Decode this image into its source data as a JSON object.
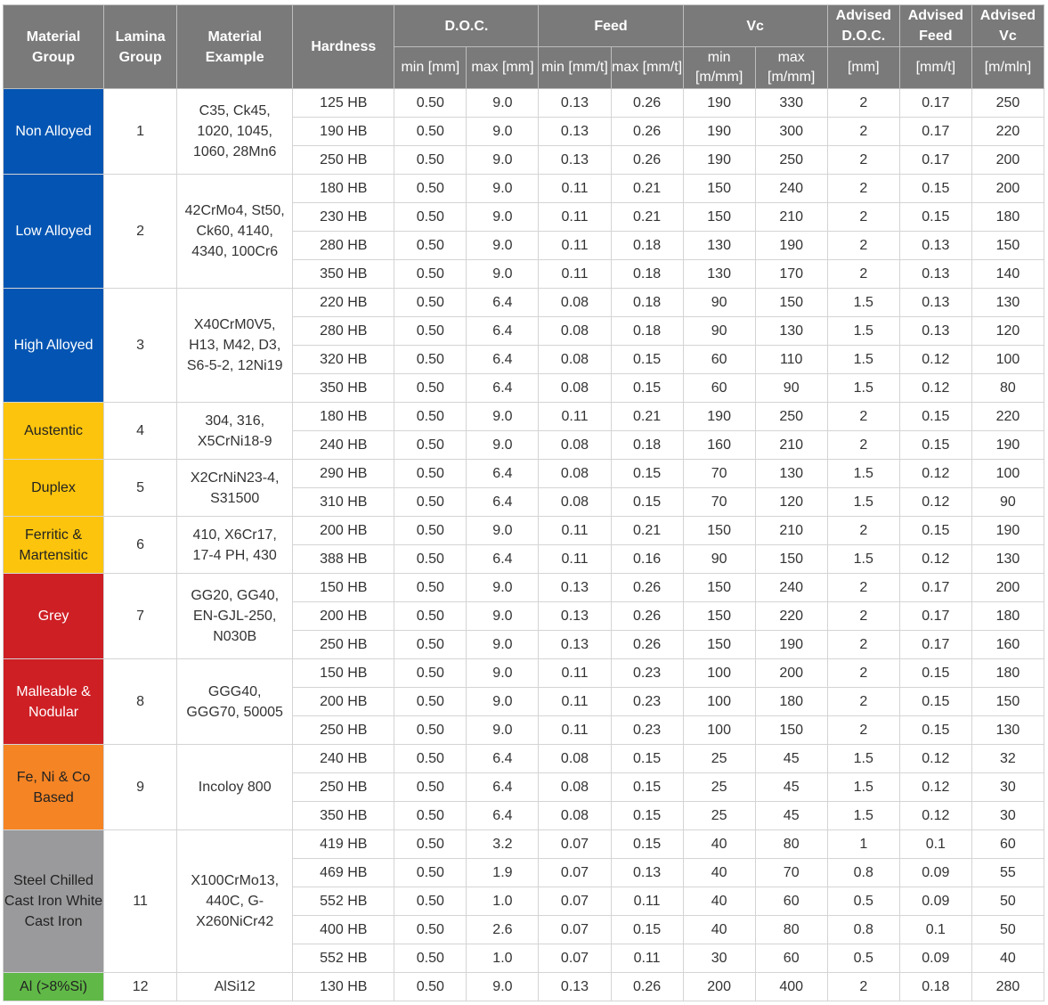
{
  "headers": {
    "material_group": "Material Group",
    "lamina_group": "Lamina Group",
    "material_example": "Material Example",
    "hardness": "Hardness",
    "doc": "D.O.C.",
    "feed": "Feed",
    "vc": "Vc",
    "advised_doc": "Advised D.O.C.",
    "advised_feed": "Advised Feed",
    "advised_vc": "Advised Vc",
    "doc_min": "min [mm]",
    "doc_max": "max [mm]",
    "feed_min": "min [mm/t]",
    "feed_max": "max [mm/t]",
    "vc_min": "min [m/mm]",
    "vc_max": "max [m/mm]",
    "advised_doc_unit": "[mm]",
    "advised_feed_unit": "[mm/t]",
    "advised_vc_unit": "[m/mln]"
  },
  "colors": {
    "header_bg": "#7a7a7a",
    "blue": "#0455b3",
    "yellow": "#fcc40d",
    "red": "#ce1f25",
    "orange": "#f58424",
    "grey": "#9a9a9c",
    "green": "#60b947"
  },
  "groups": [
    {
      "name": "Non Alloyed",
      "color": "#0455b3",
      "text_color": "#ffffff",
      "lamina": "1",
      "example": "C35, Ck45, 1020, 1045, 1060, 28Mn6",
      "rows": [
        [
          "125 HB",
          "0.50",
          "9.0",
          "0.13",
          "0.26",
          "190",
          "330",
          "2",
          "0.17",
          "250"
        ],
        [
          "190 HB",
          "0.50",
          "9.0",
          "0.13",
          "0.26",
          "190",
          "300",
          "2",
          "0.17",
          "220"
        ],
        [
          "250 HB",
          "0.50",
          "9.0",
          "0.13",
          "0.26",
          "190",
          "250",
          "2",
          "0.17",
          "200"
        ]
      ]
    },
    {
      "name": "Low Alloyed",
      "color": "#0455b3",
      "text_color": "#ffffff",
      "lamina": "2",
      "example": "42CrMo4, St50, Ck60, 4140, 4340, 100Cr6",
      "rows": [
        [
          "180 HB",
          "0.50",
          "9.0",
          "0.11",
          "0.21",
          "150",
          "240",
          "2",
          "0.15",
          "200"
        ],
        [
          "230 HB",
          "0.50",
          "9.0",
          "0.11",
          "0.21",
          "150",
          "210",
          "2",
          "0.15",
          "180"
        ],
        [
          "280 HB",
          "0.50",
          "9.0",
          "0.11",
          "0.18",
          "130",
          "190",
          "2",
          "0.13",
          "150"
        ],
        [
          "350 HB",
          "0.50",
          "9.0",
          "0.11",
          "0.18",
          "130",
          "170",
          "2",
          "0.13",
          "140"
        ]
      ]
    },
    {
      "name": "High Alloyed",
      "color": "#0455b3",
      "text_color": "#ffffff",
      "lamina": "3",
      "example": "X40CrM0V5, H13, M42, D3, S6-5-2, 12Ni19",
      "rows": [
        [
          "220 HB",
          "0.50",
          "6.4",
          "0.08",
          "0.18",
          "90",
          "150",
          "1.5",
          "0.13",
          "130"
        ],
        [
          "280 HB",
          "0.50",
          "6.4",
          "0.08",
          "0.18",
          "90",
          "130",
          "1.5",
          "0.13",
          "120"
        ],
        [
          "320 HB",
          "0.50",
          "6.4",
          "0.08",
          "0.15",
          "60",
          "110",
          "1.5",
          "0.12",
          "100"
        ],
        [
          "350 HB",
          "0.50",
          "6.4",
          "0.08",
          "0.15",
          "60",
          "90",
          "1.5",
          "0.12",
          "80"
        ]
      ]
    },
    {
      "name": "Austentic",
      "color": "#fcc40d",
      "text_color": "#222222",
      "lamina": "4",
      "example": "304, 316, X5CrNi18-9",
      "rows": [
        [
          "180 HB",
          "0.50",
          "9.0",
          "0.11",
          "0.21",
          "190",
          "250",
          "2",
          "0.15",
          "220"
        ],
        [
          "240 HB",
          "0.50",
          "9.0",
          "0.08",
          "0.18",
          "160",
          "210",
          "2",
          "0.15",
          "190"
        ]
      ]
    },
    {
      "name": "Duplex",
      "color": "#fcc40d",
      "text_color": "#222222",
      "lamina": "5",
      "example": "X2CrNiN23-4, S31500",
      "rows": [
        [
          "290 HB",
          "0.50",
          "6.4",
          "0.08",
          "0.15",
          "70",
          "130",
          "1.5",
          "0.12",
          "100"
        ],
        [
          "310 HB",
          "0.50",
          "6.4",
          "0.08",
          "0.15",
          "70",
          "120",
          "1.5",
          "0.12",
          "90"
        ]
      ]
    },
    {
      "name": "Ferritic & Martensitic",
      "color": "#fcc40d",
      "text_color": "#222222",
      "lamina": "6",
      "example": "410, X6Cr17, 17-4 PH, 430",
      "rows": [
        [
          "200 HB",
          "0.50",
          "9.0",
          "0.11",
          "0.21",
          "150",
          "210",
          "2",
          "0.15",
          "190"
        ],
        [
          "388 HB",
          "0.50",
          "6.4",
          "0.11",
          "0.16",
          "90",
          "150",
          "1.5",
          "0.12",
          "130"
        ]
      ]
    },
    {
      "name": "Grey",
      "color": "#ce1f25",
      "text_color": "#ffffff",
      "lamina": "7",
      "example": "GG20, GG40, EN-GJL-250, N030B",
      "rows": [
        [
          "150 HB",
          "0.50",
          "9.0",
          "0.13",
          "0.26",
          "150",
          "240",
          "2",
          "0.17",
          "200"
        ],
        [
          "200 HB",
          "0.50",
          "9.0",
          "0.13",
          "0.26",
          "150",
          "220",
          "2",
          "0.17",
          "180"
        ],
        [
          "250 HB",
          "0.50",
          "9.0",
          "0.13",
          "0.26",
          "150",
          "190",
          "2",
          "0.17",
          "160"
        ]
      ]
    },
    {
      "name": "Malleable & Nodular",
      "color": "#ce1f25",
      "text_color": "#ffffff",
      "lamina": "8",
      "example": "GGG40, GGG70, 50005",
      "rows": [
        [
          "150 HB",
          "0.50",
          "9.0",
          "0.11",
          "0.23",
          "100",
          "200",
          "2",
          "0.15",
          "180"
        ],
        [
          "200 HB",
          "0.50",
          "9.0",
          "0.11",
          "0.23",
          "100",
          "180",
          "2",
          "0.15",
          "150"
        ],
        [
          "250 HB",
          "0.50",
          "9.0",
          "0.11",
          "0.23",
          "100",
          "150",
          "2",
          "0.15",
          "130"
        ]
      ]
    },
    {
      "name": "Fe, Ni & Co Based",
      "color": "#f58424",
      "text_color": "#222222",
      "lamina": "9",
      "example": "Incoloy 800",
      "rows": [
        [
          "240 HB",
          "0.50",
          "6.4",
          "0.08",
          "0.15",
          "25",
          "45",
          "1.5",
          "0.12",
          "32"
        ],
        [
          "250 HB",
          "0.50",
          "6.4",
          "0.08",
          "0.15",
          "25",
          "45",
          "1.5",
          "0.12",
          "30"
        ],
        [
          "350 HB",
          "0.50",
          "6.4",
          "0.08",
          "0.15",
          "25",
          "45",
          "1.5",
          "0.12",
          "30"
        ]
      ]
    },
    {
      "name": "Steel Chilled Cast Iron White Cast Iron",
      "color": "#9a9a9c",
      "text_color": "#222222",
      "lamina": "11",
      "example": "X100CrMo13, 440C, G-X260NiCr42",
      "rows": [
        [
          "419 HB",
          "0.50",
          "3.2",
          "0.07",
          "0.15",
          "40",
          "80",
          "1",
          "0.1",
          "60"
        ],
        [
          "469 HB",
          "0.50",
          "1.9",
          "0.07",
          "0.13",
          "40",
          "70",
          "0.8",
          "0.09",
          "55"
        ],
        [
          "552 HB",
          "0.50",
          "1.0",
          "0.07",
          "0.11",
          "40",
          "60",
          "0.5",
          "0.09",
          "50"
        ],
        [
          "400 HB",
          "0.50",
          "2.6",
          "0.07",
          "0.15",
          "40",
          "80",
          "0.8",
          "0.1",
          "50"
        ],
        [
          "552 HB",
          "0.50",
          "1.0",
          "0.07",
          "0.11",
          "30",
          "60",
          "0.5",
          "0.09",
          "40"
        ]
      ]
    },
    {
      "name": "Al (>8%Si)",
      "color": "#60b947",
      "text_color": "#222222",
      "lamina": "12",
      "example": "AlSi12",
      "rows": [
        [
          "130 HB",
          "0.50",
          "9.0",
          "0.13",
          "0.26",
          "200",
          "400",
          "2",
          "0.18",
          "280"
        ]
      ]
    }
  ]
}
